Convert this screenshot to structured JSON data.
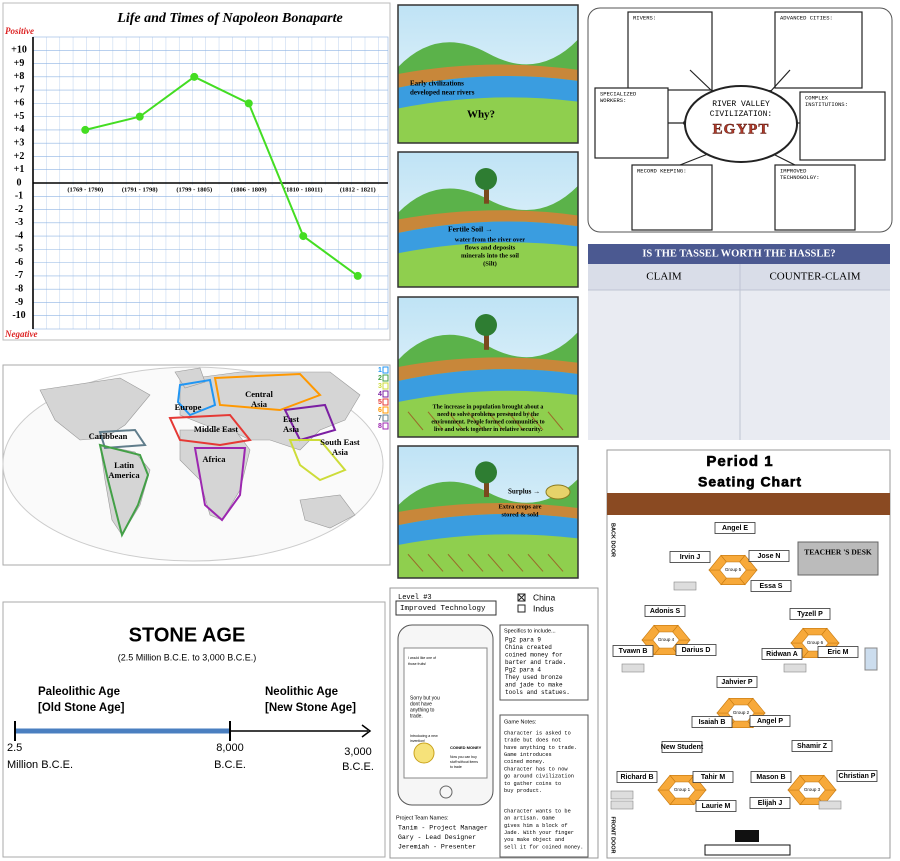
{
  "chart_data": {
    "type": "line",
    "title": "Life and Times of Napoleon Bonaparte",
    "positive_label": "Positive",
    "negative_label": "Negative",
    "categories": [
      "(1769 - 1790)",
      "(1791 - 1798)",
      "(1799 - 1805)",
      "(1806 - 1809)",
      "(1810 - 18011)",
      "(1812 - 1821)"
    ],
    "values": [
      4,
      5,
      8,
      6,
      -4,
      -7
    ],
    "color": "#44dd22",
    "ylim": [
      -11,
      11
    ],
    "yticks": [
      {
        "value": 10,
        "label": "+10"
      },
      {
        "value": 9,
        "label": "+9"
      },
      {
        "value": 8,
        "label": "+8"
      },
      {
        "value": 7,
        "label": "+7"
      },
      {
        "value": 6,
        "label": "+6"
      },
      {
        "value": 5,
        "label": "+5"
      },
      {
        "value": 4,
        "label": "+4"
      },
      {
        "value": 3,
        "label": "+3"
      },
      {
        "value": 2,
        "label": "+2"
      },
      {
        "value": 1,
        "label": "+1"
      },
      0,
      -1,
      -2,
      -3,
      -4,
      -5,
      -6,
      -7,
      -8,
      -9,
      -10
    ],
    "grid": true
  },
  "comic": {
    "panels": [
      {
        "lines": [
          "Early civilizations",
          "developed near rivers"
        ],
        "question": "Why?"
      },
      {
        "title": "Fertile Soil →",
        "lines": [
          "water from the river over",
          "flows and deposits",
          "minerals into the soil",
          "(Silt)"
        ]
      },
      {
        "lines": [
          "The increase in population brought about a",
          "need to solve problems presented by the",
          "environment. People formed communities to",
          "live and work together in relative security."
        ]
      },
      {
        "title": "Surplus →",
        "lines": [
          "Extra crops are",
          "stored & sold"
        ]
      }
    ]
  },
  "organizer": {
    "center": [
      "RIVER VALLEY",
      "CIVILIZATION:"
    ],
    "civilization": "EGYPT",
    "boxes": [
      [
        "RIVERS:"
      ],
      [
        "ADVANCED CITIES:"
      ],
      [
        "SPECIALIZED",
        "WORKERS:"
      ],
      [
        "COMPLEX",
        "INSTITUTIONS:"
      ],
      [
        "RECORD KEEPING:"
      ],
      [
        "IMPROVED",
        "TECHNOGOLGY:"
      ]
    ]
  },
  "tassel": {
    "title": "IS THE TASSEL WORTH THE HASSLE?",
    "headers": [
      "CLAIM",
      "COUNTER-CLAIM"
    ]
  },
  "map": {
    "regions": [
      [
        "Europe"
      ],
      [
        "Central",
        "Asia"
      ],
      [
        "Caribbean"
      ],
      [
        "Middle East"
      ],
      [
        "East",
        "Asia"
      ],
      [
        "Africa"
      ],
      [
        "Latin",
        "America"
      ],
      [
        "South East",
        "Asia"
      ]
    ],
    "legend": [
      "1",
      "2",
      "3",
      "4",
      "5",
      "6",
      "7",
      "8"
    ]
  },
  "stone_age": {
    "title": "STONE AGE",
    "subtitle": "(2.5 Million B.C.E. to 3,000 B.C.E.)",
    "paleolithic": [
      "Paleolithic Age",
      "[Old Stone Age]"
    ],
    "neolithic": [
      "Neolithic Age",
      "[New Stone Age]"
    ],
    "marks": [
      [
        "2.5",
        "Million B.C.E."
      ],
      [
        "8,000",
        "B.C.E."
      ],
      [
        "3,000",
        "B.C.E."
      ]
    ]
  },
  "level_sheet": {
    "level": "Level #3",
    "topic": "Improved Technology",
    "options": [
      "China",
      "Indus"
    ],
    "specifics_title": "Specifics to include...",
    "specifics": [
      "Pg2 para 9",
      "China created",
      "coined money for",
      "barter and trade.",
      "Pg2 para 4",
      "They used bronze",
      "and jade to make",
      "tools and statues."
    ],
    "notes_title": "Game Notes:",
    "notes": [
      "Character is asked to",
      "trade but does not",
      "have anything to trade.",
      "Game introduces",
      "coined money.",
      "Character has to now",
      "go around civilization",
      "to gather coins to",
      "buy product."
    ],
    "notes2": [
      "Character wants to be",
      "an artisan. Game",
      "gives him a block of",
      "Jade. With your finger",
      "you make object and",
      "sell it for coined money."
    ],
    "phone": [
      "I would like one of",
      "those fruits!",
      "Sorry but you",
      "dont have",
      "anything to",
      "trade.",
      "Introducing a new",
      "invention!",
      "COINED MONEY",
      "Now you can buy",
      "stuff without items",
      "to trade"
    ],
    "team_title": "Project Team Names:",
    "team": [
      "Tanim - Project Manager",
      "Gary - Lead Designer",
      "Jeremiah - Presenter"
    ]
  },
  "seating": {
    "title": "Period 1",
    "subtitle": "Seating Chart",
    "desk": "TEACHER 'S DESK",
    "doors": [
      "BACK DOOR",
      "FRONT DOOR"
    ],
    "students": [
      "Angel E",
      "Irvin J",
      "Jose N",
      "Essa S",
      "Adonis S",
      "Tyzell P",
      "Tvawn B",
      "Darius D",
      "Ridwan A",
      "Eric M",
      "Jahvier P",
      "Isaiah B",
      "Angel P",
      "New Student",
      "Shamir Z",
      "Richard B",
      "Tahir M",
      "Mason B",
      "Christian P",
      "Laurie M",
      "Elijah J"
    ],
    "groups": [
      "Group 5",
      "Group 4",
      "Group 6",
      "Group 2",
      "Group 1",
      "Group 3"
    ]
  }
}
